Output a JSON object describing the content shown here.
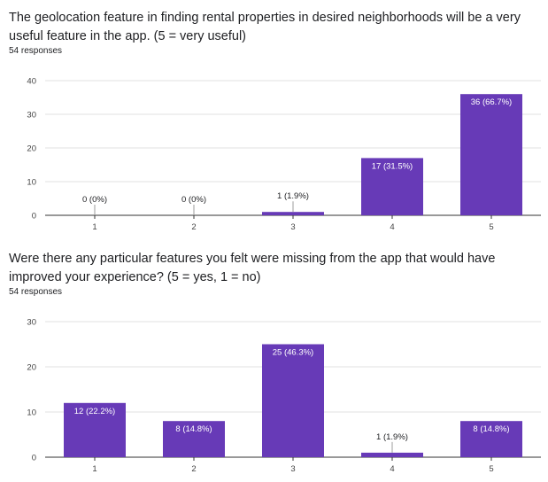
{
  "chart_data": [
    {
      "type": "bar",
      "title": "The geolocation feature in finding rental properties in desired neighborhoods will be a very useful feature in the app. (5 = very useful)",
      "subtitle": "54 responses",
      "categories": [
        "1",
        "2",
        "3",
        "4",
        "5"
      ],
      "values": [
        0,
        0,
        1,
        17,
        36
      ],
      "data_labels": [
        "0 (0%)",
        "0 (0%)",
        "1 (1.9%)",
        "17 (31.5%)",
        "36 (66.7%)"
      ],
      "ylim": [
        0,
        40
      ],
      "yticks": [
        0,
        10,
        20,
        30,
        40
      ],
      "grid": true,
      "legend": "none",
      "bar_color": "#673ab7"
    },
    {
      "type": "bar",
      "title": "Were there any particular features you felt were missing from the app that would have improved your experience? (5 = yes, 1 = no)",
      "subtitle": "54 responses",
      "categories": [
        "1",
        "2",
        "3",
        "4",
        "5"
      ],
      "values": [
        12,
        8,
        25,
        1,
        8
      ],
      "data_labels": [
        "12 (22.2%)",
        "8 (14.8%)",
        "25 (46.3%)",
        "1 (1.9%)",
        "8 (14.8%)"
      ],
      "ylim": [
        0,
        30
      ],
      "yticks": [
        0,
        10,
        20,
        30
      ],
      "grid": true,
      "legend": "none",
      "bar_color": "#673ab7"
    }
  ]
}
